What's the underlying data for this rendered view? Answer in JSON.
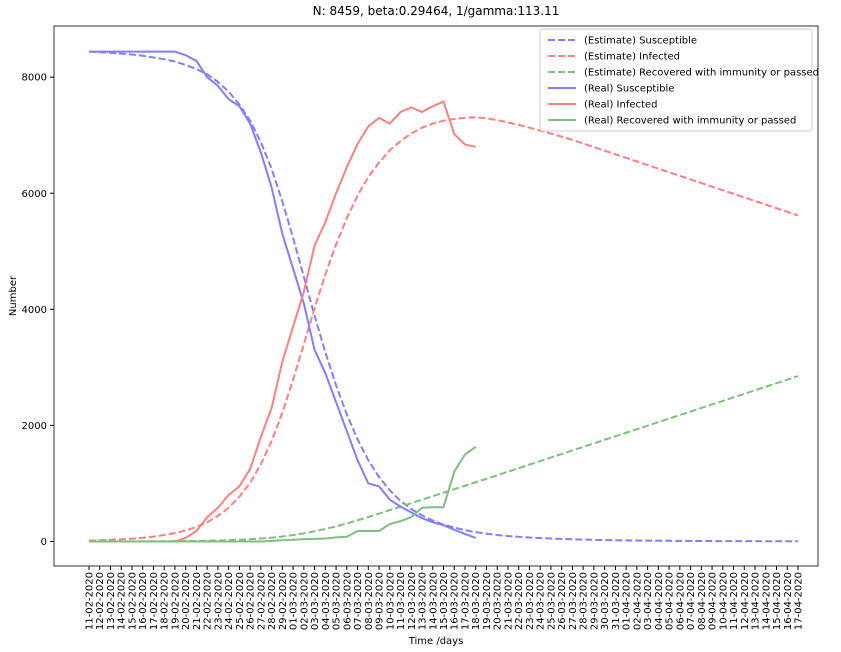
{
  "chart_data": {
    "type": "line",
    "title": "N: 8459, beta:0.29464, 1/gamma:113.11",
    "x_label": "Time /days",
    "y_label": "Number",
    "categories": [
      "11-02-2020",
      "12-02-2020",
      "13-02-2020",
      "14-02-2020",
      "15-02-2020",
      "16-02-2020",
      "17-02-2020",
      "18-02-2020",
      "19-02-2020",
      "20-02-2020",
      "21-02-2020",
      "22-02-2020",
      "23-02-2020",
      "24-02-2020",
      "25-02-2020",
      "26-02-2020",
      "27-02-2020",
      "28-02-2020",
      "29-02-2020",
      "01-03-2020",
      "02-03-2020",
      "03-03-2020",
      "04-03-2020",
      "05-03-2020",
      "06-03-2020",
      "07-03-2020",
      "08-03-2020",
      "09-03-2020",
      "10-03-2020",
      "11-03-2020",
      "12-03-2020",
      "13-03-2020",
      "14-03-2020",
      "15-03-2020",
      "16-03-2020",
      "17-03-2020",
      "18-03-2020",
      "19-03-2020",
      "20-03-2020",
      "21-03-2020",
      "22-03-2020",
      "23-03-2020",
      "24-03-2020",
      "25-03-2020",
      "26-03-2020",
      "27-03-2020",
      "28-03-2020",
      "29-03-2020",
      "30-03-2020",
      "31-03-2020",
      "01-04-2020",
      "02-04-2020",
      "03-04-2020",
      "04-04-2020",
      "05-04-2020",
      "06-04-2020",
      "07-04-2020",
      "08-04-2020",
      "09-04-2020",
      "10-04-2020",
      "11-04-2020",
      "12-04-2020",
      "13-04-2020",
      "14-04-2020",
      "15-04-2020",
      "16-04-2020",
      "17-04-2020"
    ],
    "series": [
      {
        "name": "(Estimate) Susceptible",
        "color": "#7f7fff",
        "style": "dashed",
        "values": [
          8440,
          8430,
          8420,
          8405,
          8390,
          8370,
          8340,
          8310,
          8270,
          8210,
          8140,
          8050,
          7920,
          7750,
          7530,
          7250,
          6880,
          6420,
          5860,
          5230,
          4560,
          3890,
          3260,
          2690,
          2190,
          1760,
          1400,
          1110,
          880,
          700,
          560,
          450,
          360,
          290,
          240,
          195,
          160,
          135,
          112,
          94,
          80,
          68,
          58,
          50,
          43,
          37,
          32,
          28,
          24,
          21,
          18,
          16,
          14,
          12,
          11,
          10,
          9,
          8,
          7,
          6,
          6,
          5,
          5,
          4,
          4,
          4,
          3
        ]
      },
      {
        "name": "(Estimate) Infected",
        "color": "#ff7f7f",
        "style": "dashed",
        "values": [
          15,
          20,
          27,
          36,
          48,
          63,
          83,
          110,
          145,
          190,
          250,
          330,
          440,
          580,
          770,
          1010,
          1330,
          1730,
          2220,
          2790,
          3400,
          4020,
          4600,
          5120,
          5570,
          5960,
          6280,
          6530,
          6740,
          6900,
          7030,
          7130,
          7200,
          7250,
          7280,
          7300,
          7310,
          7290,
          7260,
          7220,
          7180,
          7130,
          7080,
          7030,
          6975,
          6920,
          6858,
          6796,
          6734,
          6672,
          6610,
          6548,
          6486,
          6424,
          6362,
          6300,
          6238,
          6176,
          6114,
          6052,
          5990,
          5928,
          5866,
          5804,
          5742,
          5680,
          5618
        ]
      },
      {
        "name": "(Estimate) Recovered with immunity or passed",
        "color": "#7fbf7f",
        "style": "dashed",
        "values": [
          1,
          1,
          1,
          2,
          2,
          3,
          4,
          5,
          6,
          8,
          10,
          13,
          17,
          22,
          29,
          38,
          50,
          65,
          85,
          110,
          140,
          175,
          215,
          260,
          310,
          365,
          420,
          480,
          540,
          600,
          660,
          720,
          780,
          840,
          900,
          960,
          1020,
          1080,
          1141,
          1202,
          1263,
          1324,
          1385,
          1446,
          1507,
          1568,
          1629,
          1690,
          1751,
          1812,
          1873,
          1934,
          1995,
          2056,
          2117,
          2178,
          2239,
          2300,
          2361,
          2422,
          2483,
          2544,
          2605,
          2666,
          2727,
          2788,
          2849
        ]
      },
      {
        "name": "(Real) Susceptible",
        "color": "#7f7fff",
        "style": "solid",
        "values": [
          8440,
          8440,
          8440,
          8440,
          8440,
          8440,
          8440,
          8440,
          8440,
          8380,
          8280,
          8000,
          7850,
          7620,
          7500,
          7200,
          6700,
          6100,
          5300,
          4700,
          4100,
          3300,
          2900,
          2400,
          1900,
          1400,
          1000,
          950,
          720,
          600,
          500,
          400,
          330,
          280,
          200,
          130,
          60,
          null,
          null,
          null,
          null,
          null,
          null,
          null,
          null,
          null,
          null,
          null,
          null,
          null,
          null,
          null,
          null,
          null,
          null,
          null,
          null,
          null,
          null,
          null,
          null,
          null,
          null,
          null,
          null,
          null,
          null
        ]
      },
      {
        "name": "(Real) Infected",
        "color": "#ff7f7f",
        "style": "solid",
        "values": [
          0,
          0,
          0,
          0,
          0,
          0,
          0,
          0,
          0,
          60,
          180,
          420,
          580,
          800,
          950,
          1250,
          1800,
          2300,
          3100,
          3700,
          4300,
          5100,
          5500,
          6000,
          6450,
          6850,
          7150,
          7300,
          7200,
          7400,
          7480,
          7400,
          7500,
          7580,
          7020,
          6840,
          6800,
          null,
          null,
          null,
          null,
          null,
          null,
          null,
          null,
          null,
          null,
          null,
          null,
          null,
          null,
          null,
          null,
          null,
          null,
          null,
          null,
          null,
          null,
          null,
          null,
          null,
          null,
          null,
          null,
          null,
          null
        ]
      },
      {
        "name": "(Real) Recovered with immunity or passed",
        "color": "#7fbf7f",
        "style": "solid",
        "values": [
          0,
          0,
          0,
          0,
          0,
          0,
          0,
          0,
          0,
          0,
          0,
          0,
          0,
          0,
          0,
          0,
          0,
          10,
          20,
          30,
          40,
          45,
          50,
          70,
          80,
          180,
          180,
          180,
          300,
          350,
          420,
          580,
          590,
          590,
          1200,
          1500,
          1630,
          null,
          null,
          null,
          null,
          null,
          null,
          null,
          null,
          null,
          null,
          null,
          null,
          null,
          null,
          null,
          null,
          null,
          null,
          null,
          null,
          null,
          null,
          null,
          null,
          null,
          null,
          null,
          null,
          null,
          null
        ]
      }
    ],
    "ylim": [
      -423,
      8882
    ],
    "yticks": [
      0,
      2000,
      4000,
      6000,
      8000
    ],
    "legend": "upper right"
  }
}
